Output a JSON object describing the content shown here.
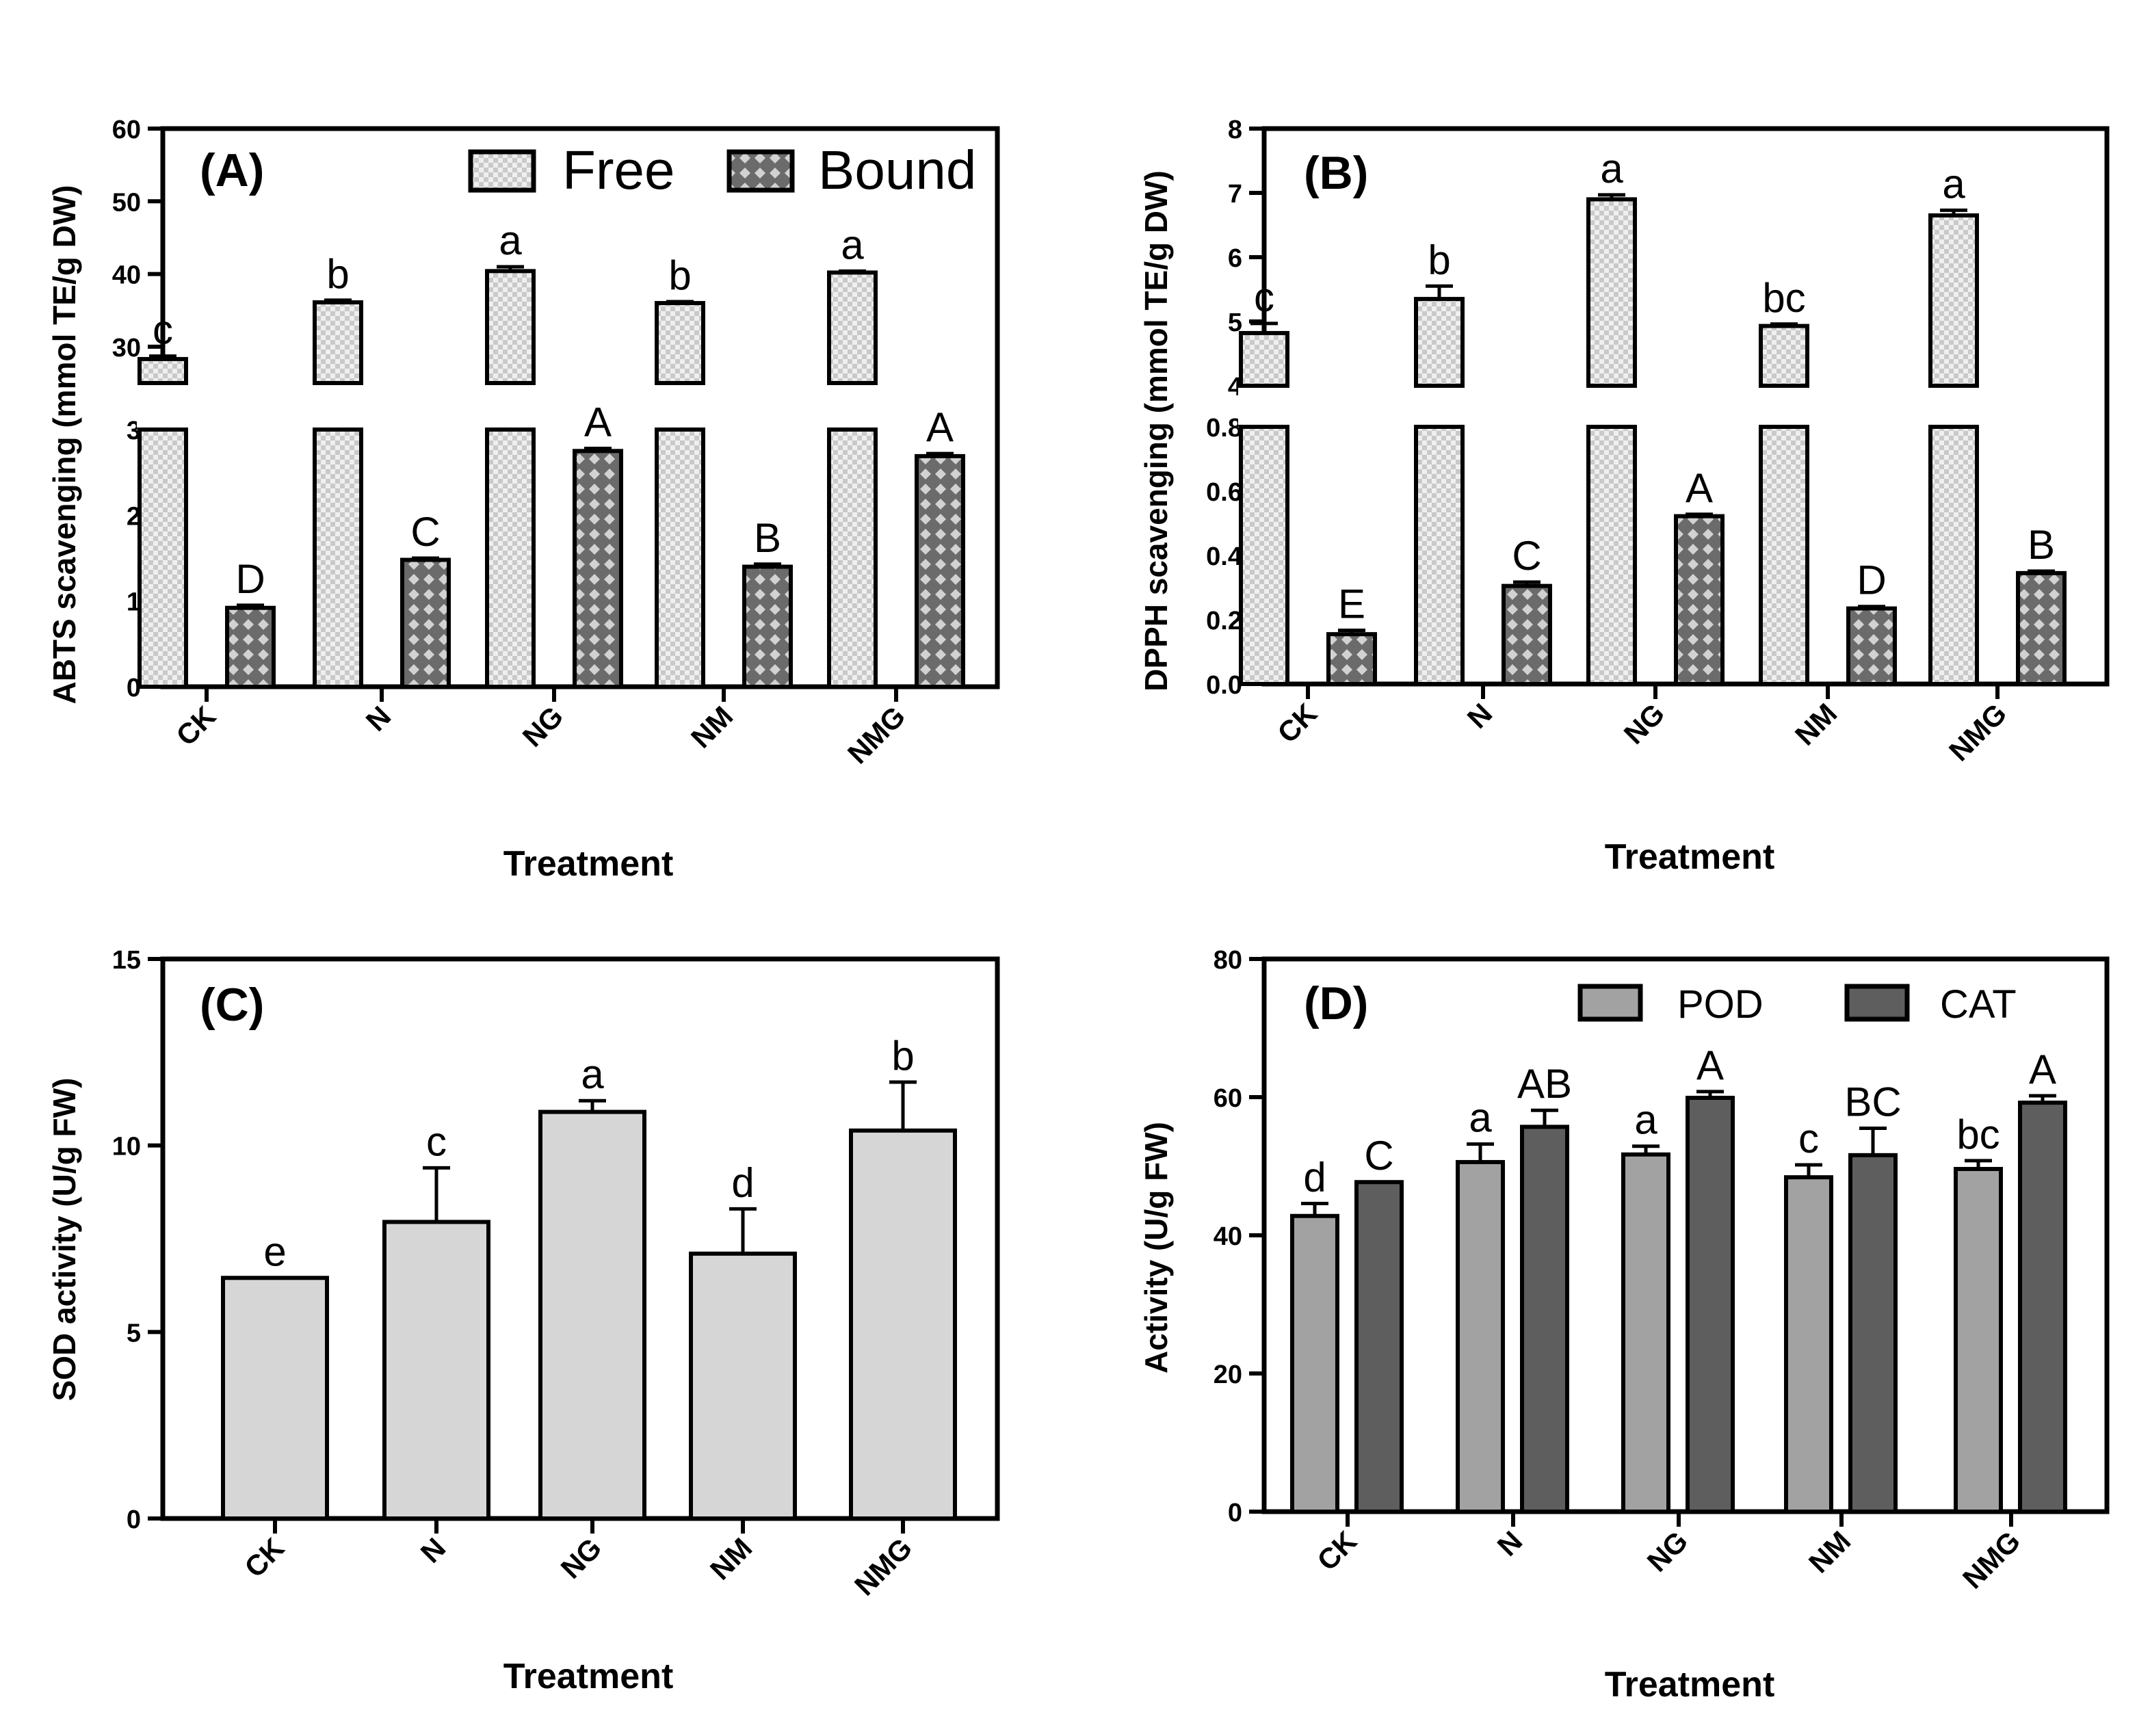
{
  "colors": {
    "free_fill": "#efefef",
    "free_check": "#c9c9c9",
    "bound_fill": "#6b6b6b",
    "bound_diamond": "#d2d2d2",
    "sod_fill": "#d6d6d6",
    "pod_fill": "#a2a2a2",
    "cat_fill": "#5e5e5e"
  },
  "chart_data": [
    {
      "panel": "(A)",
      "type": "bar",
      "xlabel": "Treatment",
      "ylabel": "ABTS scavenging (mmol TE/g DW)",
      "categories": [
        "CK",
        "N",
        "NG",
        "NM",
        "NMG"
      ],
      "axis_break": {
        "lower_range": [
          0,
          3
        ],
        "upper_range": [
          25,
          60
        ]
      },
      "lower_ticks": [
        "0",
        "1",
        "2",
        "3"
      ],
      "upper_ticks": [
        "30",
        "40",
        "50",
        "60"
      ],
      "legend": [
        "Free",
        "Bound"
      ],
      "series": [
        {
          "name": "Free",
          "values": [
            28.3,
            36.1,
            40.4,
            36.0,
            40.2
          ],
          "errors": [
            0.4,
            0.3,
            0.6,
            0.2,
            0.2
          ],
          "labels": [
            "c",
            "b",
            "a",
            "b",
            "a"
          ]
        },
        {
          "name": "Bound",
          "values": [
            0.92,
            1.48,
            2.75,
            1.4,
            2.69
          ],
          "errors": [
            0.03,
            0.02,
            0.03,
            0.03,
            0.03
          ],
          "labels": [
            "D",
            "C",
            "A",
            "B",
            "A"
          ]
        }
      ]
    },
    {
      "panel": "(B)",
      "type": "bar",
      "xlabel": "Treatment",
      "ylabel": "DPPH scavenging (mmol TE/g DW)",
      "categories": [
        "CK",
        "N",
        "NG",
        "NM",
        "NMG"
      ],
      "axis_break": {
        "lower_range": [
          0,
          0.8
        ],
        "upper_range": [
          4,
          8
        ]
      },
      "lower_ticks": [
        "0.0",
        "0.2",
        "0.4",
        "0.6",
        "0.8"
      ],
      "upper_ticks": [
        "4",
        "5",
        "6",
        "7",
        "8"
      ],
      "legend": [],
      "series": [
        {
          "name": "Free",
          "values": [
            4.82,
            5.35,
            6.9,
            4.93,
            6.65
          ],
          "errors": [
            0.15,
            0.2,
            0.07,
            0.03,
            0.08
          ],
          "labels": [
            "c",
            "b",
            "a",
            "bc",
            "a"
          ]
        },
        {
          "name": "Bound",
          "values": [
            0.155,
            0.305,
            0.522,
            0.235,
            0.345
          ],
          "errors": [
            0.012,
            0.012,
            0.006,
            0.006,
            0.006
          ],
          "labels": [
            "E",
            "C",
            "A",
            "D",
            "B"
          ]
        }
      ]
    },
    {
      "panel": "(C)",
      "type": "bar",
      "xlabel": "Treatment",
      "ylabel": "SOD activity (U/g FW)",
      "categories": [
        "CK",
        "N",
        "NG",
        "NM",
        "NMG"
      ],
      "ylim": [
        0,
        15
      ],
      "ticks": [
        "0",
        "5",
        "10",
        "15"
      ],
      "legend": [],
      "series": [
        {
          "name": "SOD",
          "values": [
            6.45,
            7.95,
            10.9,
            7.1,
            10.4
          ],
          "errors": [
            0.0,
            1.45,
            0.3,
            1.2,
            1.3
          ],
          "labels": [
            "e",
            "c",
            "a",
            "d",
            "b"
          ]
        }
      ]
    },
    {
      "panel": "(D)",
      "type": "bar",
      "xlabel": "Treatment",
      "ylabel": "Activity (U/g FW)",
      "categories": [
        "CK",
        "N",
        "NG",
        "NM",
        "NMG"
      ],
      "ylim": [
        0,
        80
      ],
      "ticks": [
        "0",
        "20",
        "40",
        "60",
        "80"
      ],
      "legend": [
        "POD",
        "CAT"
      ],
      "series": [
        {
          "name": "POD",
          "values": [
            42.8,
            50.6,
            51.7,
            48.4,
            49.6
          ],
          "errors": [
            1.8,
            2.6,
            1.2,
            1.8,
            1.2
          ],
          "labels": [
            "d",
            "a",
            "a",
            "c",
            "bc"
          ]
        },
        {
          "name": "CAT",
          "values": [
            47.7,
            55.7,
            59.9,
            51.6,
            59.2
          ],
          "errors": [
            0.0,
            2.4,
            0.9,
            3.9,
            1.0
          ],
          "labels": [
            "C",
            "AB",
            "A",
            "BC",
            "A"
          ]
        }
      ]
    }
  ]
}
